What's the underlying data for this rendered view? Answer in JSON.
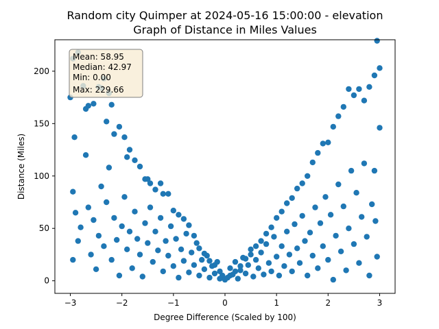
{
  "chart_data": {
    "type": "scatter",
    "title": "Random city Quimper at 2024-05-16 15:00:00  - elevation",
    "subtitle": "Graph of Distance in Miles Values",
    "xlabel": "Degree Difference (Scaled by 100)",
    "ylabel": "Distance (Miles)",
    "xlim": [
      -3.3,
      3.3
    ],
    "ylim": [
      -12,
      230
    ],
    "xticks": [
      -3,
      -2,
      -1,
      0,
      1,
      2,
      3
    ],
    "yticks": [
      0,
      50,
      100,
      150,
      200
    ],
    "grid": false,
    "point_color": "#1f77b4",
    "stats_box": {
      "lines": [
        "Mean: 58.95",
        "Median: 42.97",
        "Min: 0.00",
        "Max: 229.66"
      ],
      "face_color": "#f8ecd4",
      "edge_color": "#7f7f7f",
      "placement": "top-left"
    },
    "points": [
      [
        -3.0,
        175
      ],
      [
        -2.95,
        212
      ],
      [
        -2.85,
        218
      ],
      [
        -2.92,
        137
      ],
      [
        -2.75,
        186
      ],
      [
        -2.7,
        164
      ],
      [
        -2.65,
        167
      ],
      [
        -2.55,
        169
      ],
      [
        -2.45,
        185
      ],
      [
        -2.35,
        193
      ],
      [
        -2.4,
        184
      ],
      [
        -2.25,
        179
      ],
      [
        -2.3,
        152
      ],
      [
        -2.2,
        168
      ],
      [
        -2.15,
        140
      ],
      [
        -2.05,
        147
      ],
      [
        -1.95,
        137
      ],
      [
        -1.9,
        118
      ],
      [
        -1.85,
        125
      ],
      [
        -1.75,
        115
      ],
      [
        -1.65,
        109
      ],
      [
        -1.55,
        97
      ],
      [
        -1.5,
        97
      ],
      [
        -1.45,
        93
      ],
      [
        -1.35,
        87
      ],
      [
        -1.25,
        93
      ],
      [
        -1.2,
        83
      ],
      [
        -1.1,
        83
      ],
      [
        -1.0,
        67
      ],
      [
        -0.9,
        63
      ],
      [
        -0.8,
        59
      ],
      [
        -0.7,
        53
      ],
      [
        -0.6,
        43
      ],
      [
        -0.5,
        31
      ],
      [
        -0.4,
        26
      ],
      [
        -0.3,
        19
      ],
      [
        -0.2,
        15
      ],
      [
        -0.1,
        9
      ],
      [
        0.0,
        1
      ],
      [
        0.1,
        5
      ],
      [
        0.2,
        9
      ],
      [
        0.3,
        14
      ],
      [
        0.4,
        21
      ],
      [
        0.5,
        25
      ],
      [
        0.6,
        33
      ],
      [
        0.7,
        38
      ],
      [
        0.8,
        45
      ],
      [
        0.9,
        51
      ],
      [
        1.0,
        60
      ],
      [
        1.1,
        66
      ],
      [
        1.2,
        74
      ],
      [
        1.3,
        79
      ],
      [
        1.4,
        88
      ],
      [
        1.5,
        93
      ],
      [
        1.6,
        100
      ],
      [
        1.7,
        113
      ],
      [
        1.8,
        122
      ],
      [
        1.9,
        131
      ],
      [
        2.0,
        132
      ],
      [
        2.1,
        147
      ],
      [
        2.2,
        157
      ],
      [
        2.3,
        166
      ],
      [
        2.4,
        183
      ],
      [
        2.5,
        177
      ],
      [
        2.6,
        183
      ],
      [
        2.7,
        172
      ],
      [
        2.8,
        185
      ],
      [
        2.9,
        196
      ],
      [
        2.95,
        229
      ],
      [
        3.0,
        203
      ],
      [
        -2.95,
        85
      ],
      [
        -2.9,
        65
      ],
      [
        -2.85,
        38
      ],
      [
        -2.95,
        20
      ],
      [
        -2.8,
        51
      ],
      [
        -2.7,
        120
      ],
      [
        -2.65,
        70
      ],
      [
        -2.6,
        25
      ],
      [
        -2.55,
        58
      ],
      [
        -2.5,
        11
      ],
      [
        -2.45,
        43
      ],
      [
        -2.4,
        90
      ],
      [
        -2.35,
        33
      ],
      [
        -2.3,
        75
      ],
      [
        -2.25,
        108
      ],
      [
        -2.2,
        20
      ],
      [
        -2.15,
        60
      ],
      [
        -2.1,
        39
      ],
      [
        -2.05,
        5
      ],
      [
        -2.0,
        52
      ],
      [
        -1.95,
        80
      ],
      [
        -1.9,
        30
      ],
      [
        -1.85,
        47
      ],
      [
        -1.8,
        12
      ],
      [
        -1.75,
        66
      ],
      [
        -1.7,
        40
      ],
      [
        -1.65,
        25
      ],
      [
        -1.6,
        4
      ],
      [
        -1.55,
        55
      ],
      [
        -1.5,
        36
      ],
      [
        -1.45,
        70
      ],
      [
        -1.4,
        18
      ],
      [
        -1.35,
        47
      ],
      [
        -1.3,
        29
      ],
      [
        -1.25,
        60
      ],
      [
        -1.2,
        9
      ],
      [
        -1.15,
        38
      ],
      [
        -1.1,
        24
      ],
      [
        -1.05,
        52
      ],
      [
        -1.0,
        14
      ],
      [
        -0.95,
        40
      ],
      [
        -0.9,
        3
      ],
      [
        -0.85,
        30
      ],
      [
        -0.8,
        19
      ],
      [
        -0.75,
        45
      ],
      [
        -0.7,
        8
      ],
      [
        -0.65,
        27
      ],
      [
        -0.6,
        15
      ],
      [
        -0.55,
        36
      ],
      [
        -0.5,
        5
      ],
      [
        -0.45,
        20
      ],
      [
        -0.4,
        11
      ],
      [
        -0.35,
        24
      ],
      [
        -0.3,
        3
      ],
      [
        -0.25,
        14
      ],
      [
        -0.2,
        7
      ],
      [
        -0.15,
        18
      ],
      [
        -0.1,
        2
      ],
      [
        -0.05,
        5
      ],
      [
        0.05,
        3
      ],
      [
        0.1,
        12
      ],
      [
        0.15,
        6
      ],
      [
        0.2,
        18
      ],
      [
        0.25,
        2
      ],
      [
        0.3,
        10
      ],
      [
        0.35,
        22
      ],
      [
        0.4,
        7
      ],
      [
        0.45,
        15
      ],
      [
        0.5,
        30
      ],
      [
        0.55,
        4
      ],
      [
        0.6,
        20
      ],
      [
        0.65,
        12
      ],
      [
        0.7,
        27
      ],
      [
        0.75,
        6
      ],
      [
        0.8,
        35
      ],
      [
        0.85,
        17
      ],
      [
        0.9,
        9
      ],
      [
        0.95,
        42
      ],
      [
        1.0,
        23
      ],
      [
        1.05,
        5
      ],
      [
        1.1,
        33
      ],
      [
        1.15,
        14
      ],
      [
        1.2,
        47
      ],
      [
        1.25,
        25
      ],
      [
        1.3,
        9
      ],
      [
        1.35,
        54
      ],
      [
        1.4,
        31
      ],
      [
        1.45,
        17
      ],
      [
        1.5,
        62
      ],
      [
        1.55,
        38
      ],
      [
        1.6,
        5
      ],
      [
        1.65,
        46
      ],
      [
        1.7,
        24
      ],
      [
        1.75,
        70
      ],
      [
        1.8,
        12
      ],
      [
        1.85,
        55
      ],
      [
        1.9,
        33
      ],
      [
        1.95,
        80
      ],
      [
        2.0,
        20
      ],
      [
        2.05,
        63
      ],
      [
        2.1,
        1
      ],
      [
        2.15,
        43
      ],
      [
        2.2,
        92
      ],
      [
        2.25,
        28
      ],
      [
        2.3,
        71
      ],
      [
        2.35,
        10
      ],
      [
        2.4,
        50
      ],
      [
        2.45,
        105
      ],
      [
        2.5,
        35
      ],
      [
        2.55,
        84
      ],
      [
        2.6,
        17
      ],
      [
        2.65,
        61
      ],
      [
        2.7,
        112
      ],
      [
        2.75,
        42
      ],
      [
        2.8,
        5
      ],
      [
        2.85,
        73
      ],
      [
        2.9,
        105
      ],
      [
        2.95,
        23
      ],
      [
        3.0,
        146
      ],
      [
        2.92,
        57
      ]
    ]
  }
}
